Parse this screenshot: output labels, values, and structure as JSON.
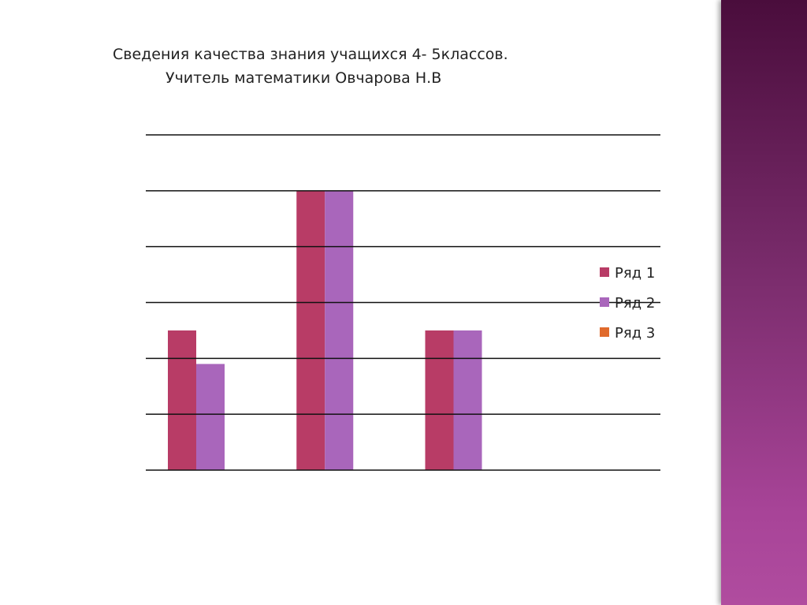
{
  "title_line1": "Сведения качества знания учащихся 4- 5классов.",
  "title_line2": "Учитель математики Овчарова Н.В",
  "chart_data": {
    "type": "bar",
    "categories": [
      "",
      "",
      "",
      ""
    ],
    "series": [
      {
        "name": "Ряд 1",
        "color": "#b83c66",
        "values": [
          2.5,
          5,
          2.5,
          null
        ]
      },
      {
        "name": "Ряд 2",
        "color": "#a966bb",
        "values": [
          1.9,
          5,
          2.5,
          null
        ]
      },
      {
        "name": "Ряд 3",
        "color": "#e06a2c",
        "values": [
          null,
          null,
          null,
          null
        ]
      }
    ],
    "ylim": [
      0,
      6
    ],
    "grid": true,
    "legend": "right"
  }
}
